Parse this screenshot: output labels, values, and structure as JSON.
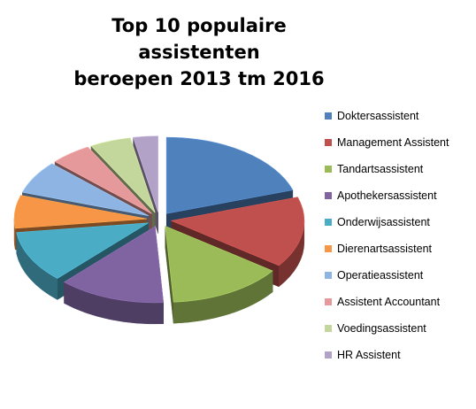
{
  "chart_data": {
    "type": "pie",
    "title_lines": [
      "Top 10 populaire assistenten",
      "beroepen 2013 tm 2016"
    ],
    "legend_position": "right",
    "categories": [
      "Doktersassistent",
      "Management Assistent",
      "Tandartsassistent",
      "Apothekersassistent",
      "Onderwijsassistent",
      "Dierenartsassistent",
      "Operatieassistent",
      "Assistent Accountant",
      "Voedingsassistent",
      "HR Assistent"
    ],
    "values": [
      20,
      15,
      14,
      13,
      11,
      7,
      7,
      5,
      5,
      3
    ],
    "colors": [
      "#4F81BD",
      "#C0504D",
      "#9BBB59",
      "#8064A2",
      "#4BACC6",
      "#F79646",
      "#8EB4E3",
      "#E6999A",
      "#C3D69B",
      "#B3A2C7"
    ],
    "exploded": true,
    "three_d": true
  }
}
